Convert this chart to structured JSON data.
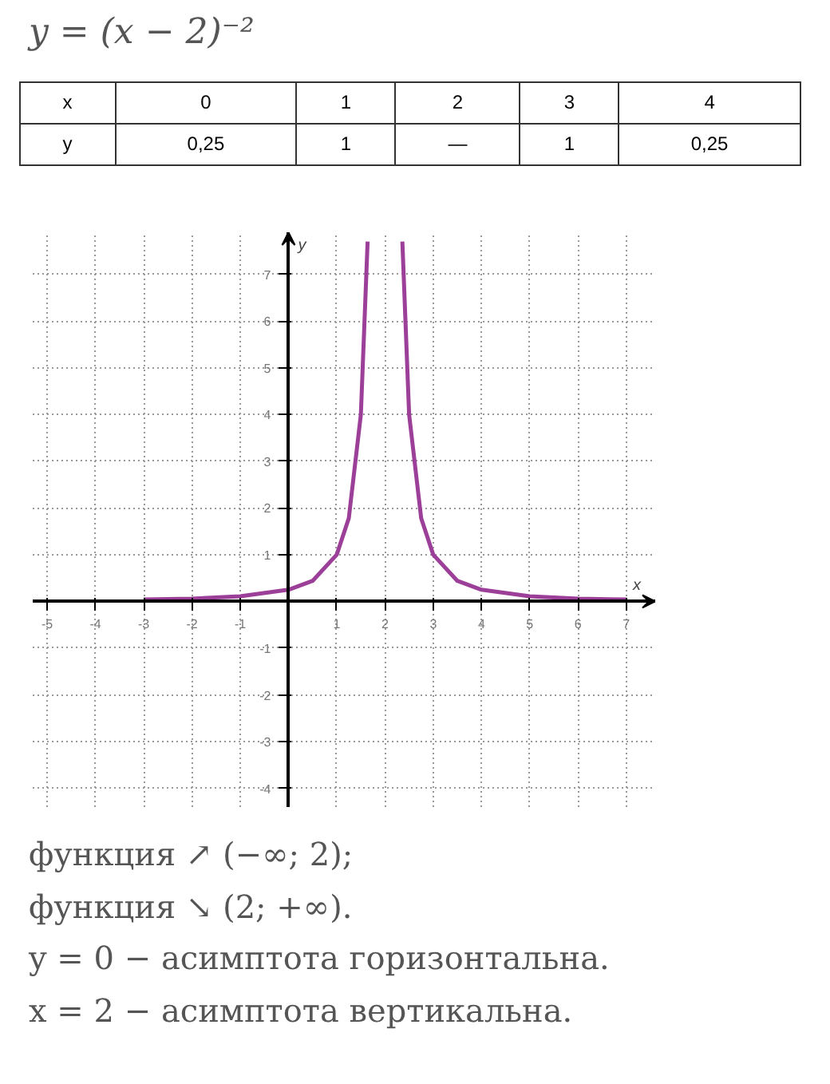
{
  "chart_data": {
    "type": "line",
    "title": "y = (x − 2)⁻²",
    "xlabel": "x",
    "ylabel": "y",
    "annotations": [
      "x",
      "0",
      "1",
      "2",
      "3",
      "4",
      "y",
      "0,25",
      "1",
      "—",
      "1",
      "0,25",
      "функция ↗ (−∞; 2);",
      "функция ↘ (2; +∞).",
      "y = 0 − асимптота горизонтальна.",
      "x = 2 − асимптота вертикальна."
    ],
    "x": [
      -3,
      -2,
      -1,
      0,
      0.5,
      1,
      1.25,
      1.5,
      1.64,
      2,
      2.36,
      2.5,
      2.75,
      3,
      3.5,
      4,
      5,
      6,
      7
    ],
    "series": [
      {
        "color": "#9c3f98",
        "values": [
          0.04,
          0.06,
          0.11,
          0.25,
          0.44,
          1,
          1.78,
          4,
          7.7,
          null,
          7.7,
          4,
          1.78,
          1,
          0.44,
          0.25,
          0.11,
          0.06,
          0.04
        ]
      }
    ],
    "xlim": [
      -5.3,
      7.6
    ],
    "ylim": [
      -4.4,
      7.9
    ],
    "xticks": [
      -5,
      -4,
      -3,
      -2,
      -1,
      1,
      2,
      3,
      4,
      5,
      6,
      7
    ],
    "yticks": [
      -4,
      -3,
      -2,
      -1,
      1,
      2,
      3,
      4,
      5,
      6,
      7
    ],
    "grid": true,
    "marker": "none",
    "line_style": "solid"
  }
}
